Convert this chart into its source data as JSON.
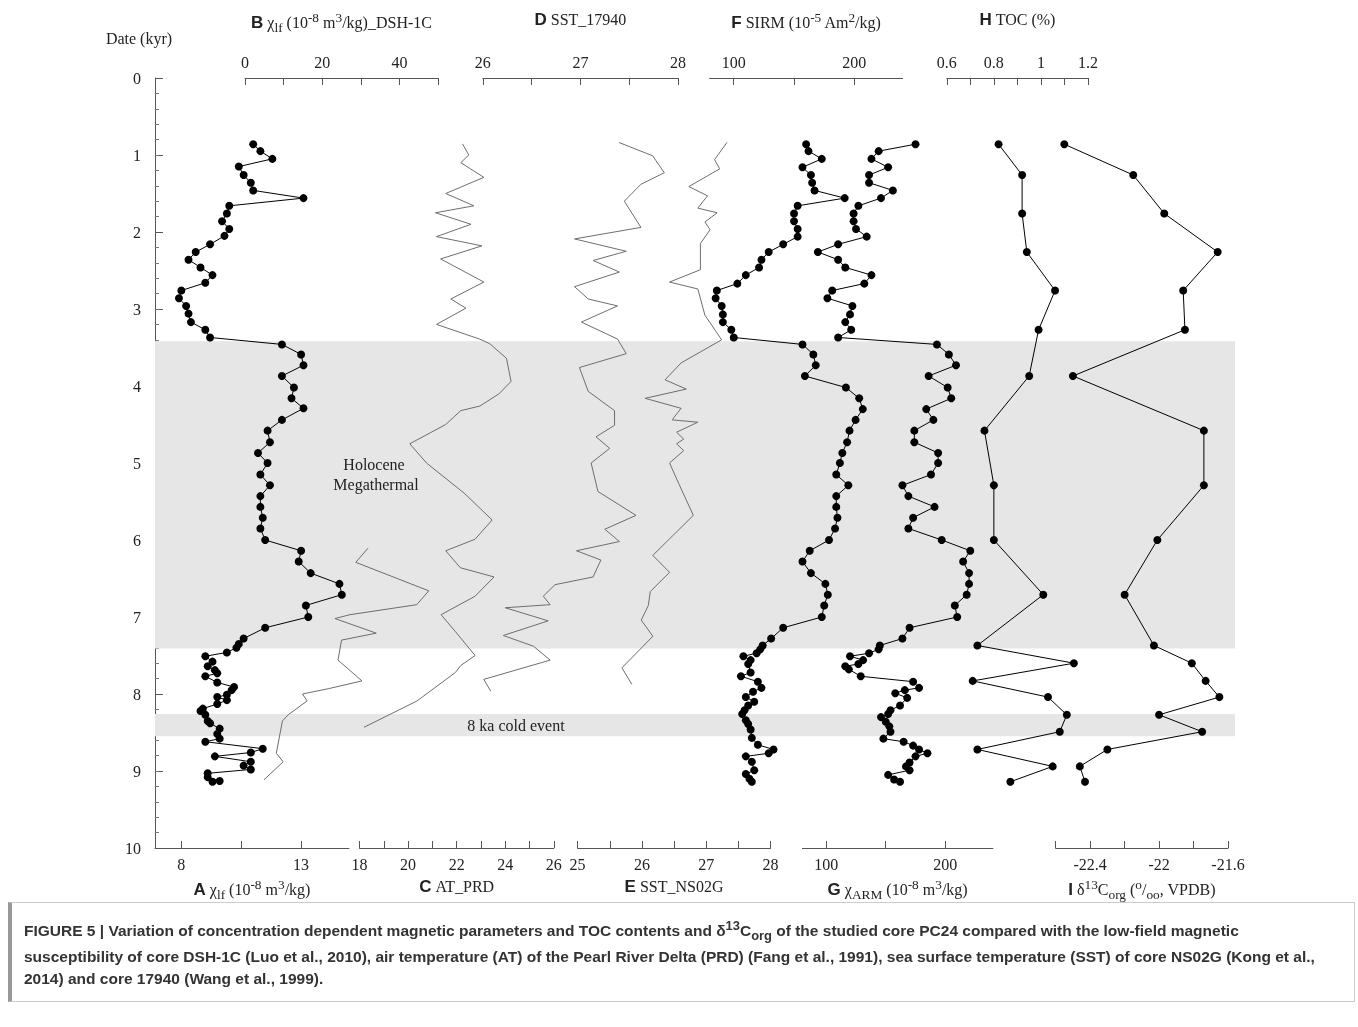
{
  "chart_data": [
    {
      "type": "line",
      "xlabel": "A χ$_{lf}$ (10$^{-8}$ m$^{3}$/kg)",
      "ylabel": "Date (kyr)",
      "color": "#000000",
      "marker": "circle",
      "xlim": [
        6.9,
        15
      ],
      "xticks": [
        8,
        {
          "value": 10.5,
          "label": null
        },
        13
      ],
      "ylim": [
        10,
        0
      ],
      "yticks": [
        0,
        1,
        2,
        3,
        4,
        5,
        6,
        7,
        8,
        9,
        10
      ],
      "x": [
        11.0,
        11.3,
        11.8,
        10.4,
        10.6,
        10.9,
        11.0,
        13.1,
        10.0,
        9.9,
        9.7,
        10.0,
        9.8,
        9.2,
        8.6,
        8.3,
        8.8,
        9.3,
        9.0,
        8.0,
        7.9,
        8.2,
        8.3,
        8.4,
        9.0,
        9.2,
        12.2,
        13.0,
        13.1,
        12.2,
        12.7,
        12.6,
        13.1,
        12.2,
        11.6,
        11.7,
        11.2,
        11.6,
        11.3,
        11.7,
        11.3,
        11.3,
        11.4,
        11.3,
        11.5,
        13.0,
        12.9,
        13.4,
        14.6,
        14.7,
        13.2,
        13.3,
        11.5,
        10.6,
        10.4,
        10.3,
        9.9,
        9.0,
        9.3,
        9.1,
        9.4,
        9.5,
        9.0,
        9.5,
        10.2,
        10.1,
        9.9,
        9.5,
        9.9,
        9.5,
        8.9,
        8.8,
        9.0,
        9.1,
        9.2,
        9.6,
        9.5,
        9.6,
        9.0,
        11.4,
        10.9,
        9.4,
        10.9,
        10.6,
        10.9,
        9.1,
        9.1,
        9.6,
        9.3
      ],
      "values": [
        0.86,
        0.95,
        1.05,
        1.15,
        1.26,
        1.36,
        1.46,
        1.56,
        1.66,
        1.76,
        1.86,
        1.96,
        2.05,
        2.16,
        2.26,
        2.36,
        2.46,
        2.56,
        2.66,
        2.76,
        2.86,
        2.96,
        3.06,
        3.17,
        3.27,
        3.37,
        3.46,
        3.59,
        3.73,
        3.87,
        4.02,
        4.16,
        4.29,
        4.44,
        4.58,
        4.73,
        4.87,
        5.0,
        5.15,
        5.29,
        5.43,
        5.57,
        5.71,
        5.85,
        6.0,
        6.14,
        6.28,
        6.43,
        6.57,
        6.71,
        6.85,
        7.0,
        7.14,
        7.28,
        7.35,
        7.4,
        7.46,
        7.51,
        7.58,
        7.64,
        7.69,
        7.73,
        7.77,
        7.85,
        7.91,
        7.95,
        8.01,
        8.04,
        8.08,
        8.13,
        8.19,
        8.22,
        8.27,
        8.35,
        8.38,
        8.45,
        8.52,
        8.58,
        8.62,
        8.71,
        8.76,
        8.81,
        8.88,
        8.93,
        8.98,
        9.03,
        9.08,
        9.13,
        9.14
      ],
      "bands": [
        {
          "axis": "y",
          "from": 3.42,
          "to": 7.41,
          "label": "Holocene Megathermal",
          "color": "#e6e6e6"
        },
        {
          "axis": "y",
          "from": 8.26,
          "to": 8.55,
          "label": "8 ka cold event",
          "color": "#e6e6e6"
        }
      ],
      "annotations": [
        "FIGURE 5 | Variation of concentration dependent magnetic parameters and TOC contents and δ$^{13}$C$_{org}$ of the studied core PC24 compared with the low-field magnetic susceptibility of core DSH-1C (Luo et al., 2010), air temperature (AT) of the Pearl River Delta (PRD) (Fang et al., 1991), sea surface temperature (SST) of core NS02G (Kong et al., 2014) and core 17940 (Wang et al., 1999)."
      ]
    },
    {
      "type": "line",
      "xlabel": "B χ$_{lf}$ (10$^{-8}$ m$^{3}$/kg)_DSH-1C",
      "color": "#6e6e6e",
      "marker": "none",
      "xlim": [
        0,
        50
      ],
      "xticks": [
        0,
        {
          "value": 10,
          "label": null
        },
        20,
        {
          "value": 30,
          "label": null
        },
        40,
        {
          "value": 50,
          "label": null
        }
      ],
      "ylim": [
        10,
        0
      ],
      "tick_labels": "x",
      "series": [
        {
          "x": [
            31.8,
            28.7,
            47.6,
            44.5,
            27.2,
            23.3,
            34.0,
            25.0,
            24.1,
            30.3,
            21.7,
            14.9,
            16.1,
            11.2,
            9.7,
            8.1,
            9.9,
            5.0
          ],
          "values": [
            6.11,
            6.29,
            6.66,
            6.84,
            6.97,
            7.02,
            7.21,
            7.3,
            7.56,
            7.83,
            7.93,
            8.0,
            8.09,
            8.27,
            8.35,
            8.77,
            8.88,
            9.11
          ]
        }
      ]
    },
    {
      "type": "line",
      "xlabel": "C AT_PRD",
      "color": "#6e6e6e",
      "marker": "none",
      "xlim": [
        18,
        26
      ],
      "xticks": [
        18,
        {
          "value": 19,
          "label": null
        },
        20,
        {
          "value": 21,
          "label": null
        },
        22,
        {
          "value": 23,
          "label": null
        },
        24,
        {
          "value": 25,
          "label": null
        },
        26
      ],
      "ylim": [
        10,
        0
      ],
      "tick_labels": "x",
      "x": [
        22.25,
        22.5,
        22.17,
        23.12,
        21.55,
        22.71,
        21.13,
        22.59,
        21.17,
        23.04,
        21.34,
        23.12,
        21.76,
        22.38,
        21.17,
        22.94,
        23.36,
        24.05,
        24.24,
        23.75,
        22.96,
        22.17,
        21.55,
        20.07,
        20.76,
        22.34,
        23.46,
        22.76,
        21.55,
        22.15,
        23.54,
        22.76,
        21.36,
        21.95,
        22.76,
        22.17,
        21.95,
        20.37,
        18.2
      ],
      "values": [
        0.86,
        1.0,
        1.1,
        1.29,
        1.5,
        1.66,
        1.75,
        1.9,
        2.06,
        2.18,
        2.35,
        2.65,
        2.87,
        2.99,
        3.2,
        3.39,
        3.45,
        3.64,
        3.94,
        4.1,
        4.26,
        4.32,
        4.5,
        4.75,
        5.0,
        5.4,
        5.74,
        5.99,
        6.14,
        6.36,
        6.48,
        6.73,
        6.97,
        7.19,
        7.5,
        7.63,
        7.72,
        8.09,
        8.43
      ]
    },
    {
      "type": "line",
      "xlabel": "D SST_17940",
      "color": "#6e6e6e",
      "marker": "none",
      "xlim": [
        26,
        28
      ],
      "xticks": [
        26,
        {
          "value": 26.5,
          "label": null
        },
        27,
        {
          "value": 27.5,
          "label": null
        },
        28
      ],
      "ylim": [
        10,
        0
      ],
      "tick_labels": "x",
      "series": [
        {
          "x": [
            27.4,
            27.74,
            27.86,
            27.62,
            27.45,
            27.62,
            26.94,
            27.47,
            27.13,
            27.4,
            26.94,
            27.08,
            27.38,
            27.01,
            27.38,
            27.47,
            26.99,
            27.08,
            27.35,
            27.35,
            27.16,
            27.3,
            27.11,
            27.18,
            27.57,
            27.25,
            27.4,
            26.96,
            27.21,
            27.13,
            26.74,
            26.62,
            26.69,
            26.23,
            26.67,
            26.21,
            26.52,
            26.69,
            26.01,
            26.08
          ],
          "values": [
            0.84,
            1.01,
            1.23,
            1.38,
            1.6,
            1.94,
            2.09,
            2.25,
            2.37,
            2.52,
            2.71,
            2.87,
            2.96,
            3.17,
            3.39,
            3.58,
            3.76,
            4.07,
            4.32,
            4.51,
            4.66,
            4.81,
            5.0,
            5.37,
            5.68,
            5.86,
            6.02,
            6.14,
            6.26,
            6.48,
            6.58,
            6.73,
            6.84,
            6.88,
            7.05,
            7.24,
            7.38,
            7.56,
            7.81,
            7.96
          ]
        }
      ]
    },
    {
      "type": "line",
      "xlabel": "E SST_NS02G",
      "color": "#6e6e6e",
      "marker": "none",
      "xlim": [
        25,
        28
      ],
      "xticks": [
        25,
        {
          "value": 25.5,
          "label": null
        },
        26,
        {
          "value": 26.5,
          "label": null
        },
        27,
        {
          "value": 27.5,
          "label": null
        },
        28
      ],
      "ylim": [
        10,
        0
      ],
      "tick_labels": "x",
      "x": [
        27.32,
        27.13,
        27.21,
        26.73,
        27.02,
        26.87,
        27.17,
        26.98,
        27.06,
        26.91,
        26.91,
        26.43,
        26.87,
        26.98,
        27.24,
        26.61,
        26.36,
        26.69,
        26.05,
        26.61,
        26.47,
        26.87,
        26.54,
        26.65,
        26.54,
        26.65,
        26.43,
        26.58,
        26.8,
        26.17,
        26.43,
        26.13,
        26.1,
        25.99,
        26.17,
        25.69,
        25.84
      ],
      "values": [
        0.84,
        1.06,
        1.18,
        1.41,
        1.53,
        1.69,
        1.75,
        1.87,
        1.97,
        2.15,
        2.49,
        2.65,
        2.74,
        3.08,
        3.4,
        3.7,
        3.92,
        4.04,
        4.16,
        4.29,
        4.44,
        4.47,
        4.6,
        4.69,
        4.75,
        4.84,
        5.0,
        5.28,
        5.68,
        6.2,
        6.42,
        6.67,
        6.85,
        7.04,
        7.25,
        7.66,
        7.87
      ]
    },
    {
      "type": "line",
      "xlabel": "F SIRM (10$^{-5}$ Am$^{2}$/kg)",
      "color": "#000000",
      "marker": "circle",
      "xlim": [
        80,
        240
      ],
      "xticks": [
        100,
        {
          "value": 150,
          "label": null
        },
        200
      ],
      "ylim": [
        10,
        0
      ],
      "tick_labels": "x",
      "series": [
        {
          "x": [
            160,
            162,
            173,
            157,
            164,
            165,
            167,
            192,
            153,
            150,
            150,
            153,
            153,
            141,
            129,
            123,
            121,
            110,
            103,
            86,
            85,
            90,
            91,
            91,
            98,
            100,
            157,
            166,
            168,
            159,
            193,
            204,
            207,
            201,
            196,
            194,
            190,
            188,
            185,
            195,
            185,
            185,
            186,
            184,
            179,
            163,
            157,
            164,
            176,
            178,
            175,
            173,
            141,
            131,
            124,
            122,
            119,
            108,
            114,
            112,
            114,
            106,
            120,
            123,
            116,
            110,
            117,
            112,
            109,
            107,
            110,
            112,
            114,
            115,
            120,
            133,
            129,
            110,
            115,
            117,
            110,
            113,
            115
          ],
          "values": [
            0.86,
            0.95,
            1.05,
            1.16,
            1.26,
            1.36,
            1.46,
            1.56,
            1.66,
            1.76,
            1.86,
            1.96,
            2.06,
            2.16,
            2.26,
            2.36,
            2.46,
            2.56,
            2.67,
            2.76,
            2.86,
            2.96,
            3.07,
            3.17,
            3.27,
            3.37,
            3.46,
            3.59,
            3.73,
            3.87,
            4.02,
            4.16,
            4.3,
            4.44,
            4.58,
            4.73,
            4.87,
            5.0,
            5.15,
            5.29,
            5.43,
            5.57,
            5.71,
            5.85,
            6.0,
            6.14,
            6.28,
            6.43,
            6.57,
            6.71,
            6.85,
            7.0,
            7.14,
            7.28,
            7.37,
            7.42,
            7.47,
            7.51,
            7.56,
            7.61,
            7.72,
            7.77,
            7.84,
            7.92,
            7.97,
            8.04,
            8.1,
            8.15,
            8.21,
            8.26,
            8.34,
            8.39,
            8.46,
            8.57,
            8.66,
            8.72,
            8.77,
            8.81,
            8.88,
            8.99,
            9.04,
            9.1,
            9.14
          ]
        }
      ]
    },
    {
      "type": "line",
      "xlabel": "G χ$_{ARM}$ (10$^{-8}$ m$^{3}$/kg)",
      "color": "#000000",
      "marker": "circle",
      "xlim": [
        80,
        240
      ],
      "xticks": [
        100,
        {
          "value": 150,
          "label": null
        },
        200
      ],
      "ylim": [
        10,
        0
      ],
      "tick_labels": "x",
      "x": [
        175,
        144,
        138,
        152,
        136,
        136,
        156,
        146,
        127,
        123,
        123,
        125,
        134,
        110,
        93,
        110,
        116,
        138,
        132,
        105,
        101,
        122,
        120,
        116,
        121,
        110,
        193,
        203,
        209,
        186,
        202,
        205,
        184,
        190,
        174,
        174,
        194,
        194,
        188,
        164,
        169,
        191,
        173,
        169,
        197,
        221,
        215,
        220,
        220,
        218,
        208,
        210,
        170,
        164,
        145,
        144,
        136,
        120,
        131,
        127,
        116,
        119,
        129,
        173,
        178,
        166,
        158,
        168,
        162,
        154,
        152,
        146,
        150,
        153,
        154,
        148,
        165,
        173,
        178,
        185,
        175,
        170,
        167,
        170,
        152,
        157,
        162
      ],
      "values": [
        0.86,
        0.95,
        1.05,
        1.16,
        1.26,
        1.36,
        1.46,
        1.56,
        1.66,
        1.76,
        1.86,
        1.96,
        2.06,
        2.16,
        2.26,
        2.36,
        2.46,
        2.56,
        2.67,
        2.76,
        2.86,
        2.96,
        3.07,
        3.17,
        3.27,
        3.37,
        3.46,
        3.59,
        3.73,
        3.87,
        4.02,
        4.16,
        4.3,
        4.44,
        4.58,
        4.73,
        4.87,
        5.0,
        5.15,
        5.29,
        5.43,
        5.57,
        5.71,
        5.85,
        6.0,
        6.14,
        6.28,
        6.43,
        6.57,
        6.71,
        6.85,
        7.0,
        7.14,
        7.28,
        7.37,
        7.42,
        7.47,
        7.51,
        7.56,
        7.61,
        7.64,
        7.68,
        7.77,
        7.84,
        7.92,
        7.95,
        7.99,
        8.05,
        8.15,
        8.21,
        8.26,
        8.3,
        8.36,
        8.42,
        8.49,
        8.58,
        8.62,
        8.67,
        8.72,
        8.77,
        8.81,
        8.89,
        8.94,
        8.99,
        9.05,
        9.11,
        9.14
      ]
    },
    {
      "type": "line",
      "xlabel": "H TOC (%)",
      "color": "#000000",
      "marker": "circle",
      "xlim": [
        0.6,
        1.2
      ],
      "xticks": [
        0.6,
        {
          "value": 0.7,
          "label": null
        },
        0.8,
        {
          "value": 0.9,
          "label": null
        },
        1,
        {
          "value": 1.1,
          "label": null
        },
        1.2
      ],
      "ylim": [
        10,
        0
      ],
      "tick_labels": "x",
      "series": [
        {
          "x": [
            0.82,
            0.92,
            0.92,
            0.94,
            1.06,
            0.99,
            0.95,
            0.76,
            0.8,
            0.8,
            1.01,
            0.73,
            1.14,
            0.71,
            1.03,
            1.11,
            1.08,
            0.73,
            1.05,
            0.87
          ],
          "values": [
            0.86,
            1.26,
            1.76,
            2.26,
            2.76,
            3.27,
            3.87,
            4.58,
            5.29,
            6.0,
            6.71,
            7.37,
            7.6,
            7.83,
            8.04,
            8.27,
            8.49,
            8.72,
            8.94,
            9.14
          ]
        }
      ]
    },
    {
      "type": "line",
      "xlabel": "I δ$^{13}$C$_{org}$ ($^{o}$/$_{oo}$, VPDB)",
      "color": "#000000",
      "marker": "circle",
      "xlim": [
        -22.6,
        -21.6
      ],
      "xticks": [
        {
          "value": -22.6,
          "label": null
        },
        -22.4,
        {
          "value": -22.2,
          "label": null
        },
        -22,
        {
          "value": -21.8,
          "label": null
        },
        -21.6
      ],
      "ylim": [
        10,
        0
      ],
      "tick_labels": "x",
      "x": [
        -22.55,
        -22.15,
        -21.97,
        -21.66,
        -21.86,
        -21.85,
        -22.5,
        -21.74,
        -21.74,
        -22.01,
        -22.2,
        -22.03,
        -21.81,
        -21.73,
        -21.65,
        -22.0,
        -21.75,
        -22.3,
        -22.46,
        -22.43
      ],
      "values": [
        0.86,
        1.26,
        1.76,
        2.26,
        2.76,
        3.27,
        3.87,
        4.58,
        5.29,
        6.0,
        6.71,
        7.37,
        7.6,
        7.83,
        8.04,
        8.27,
        8.49,
        8.72,
        8.94,
        9.14
      ]
    }
  ]
}
